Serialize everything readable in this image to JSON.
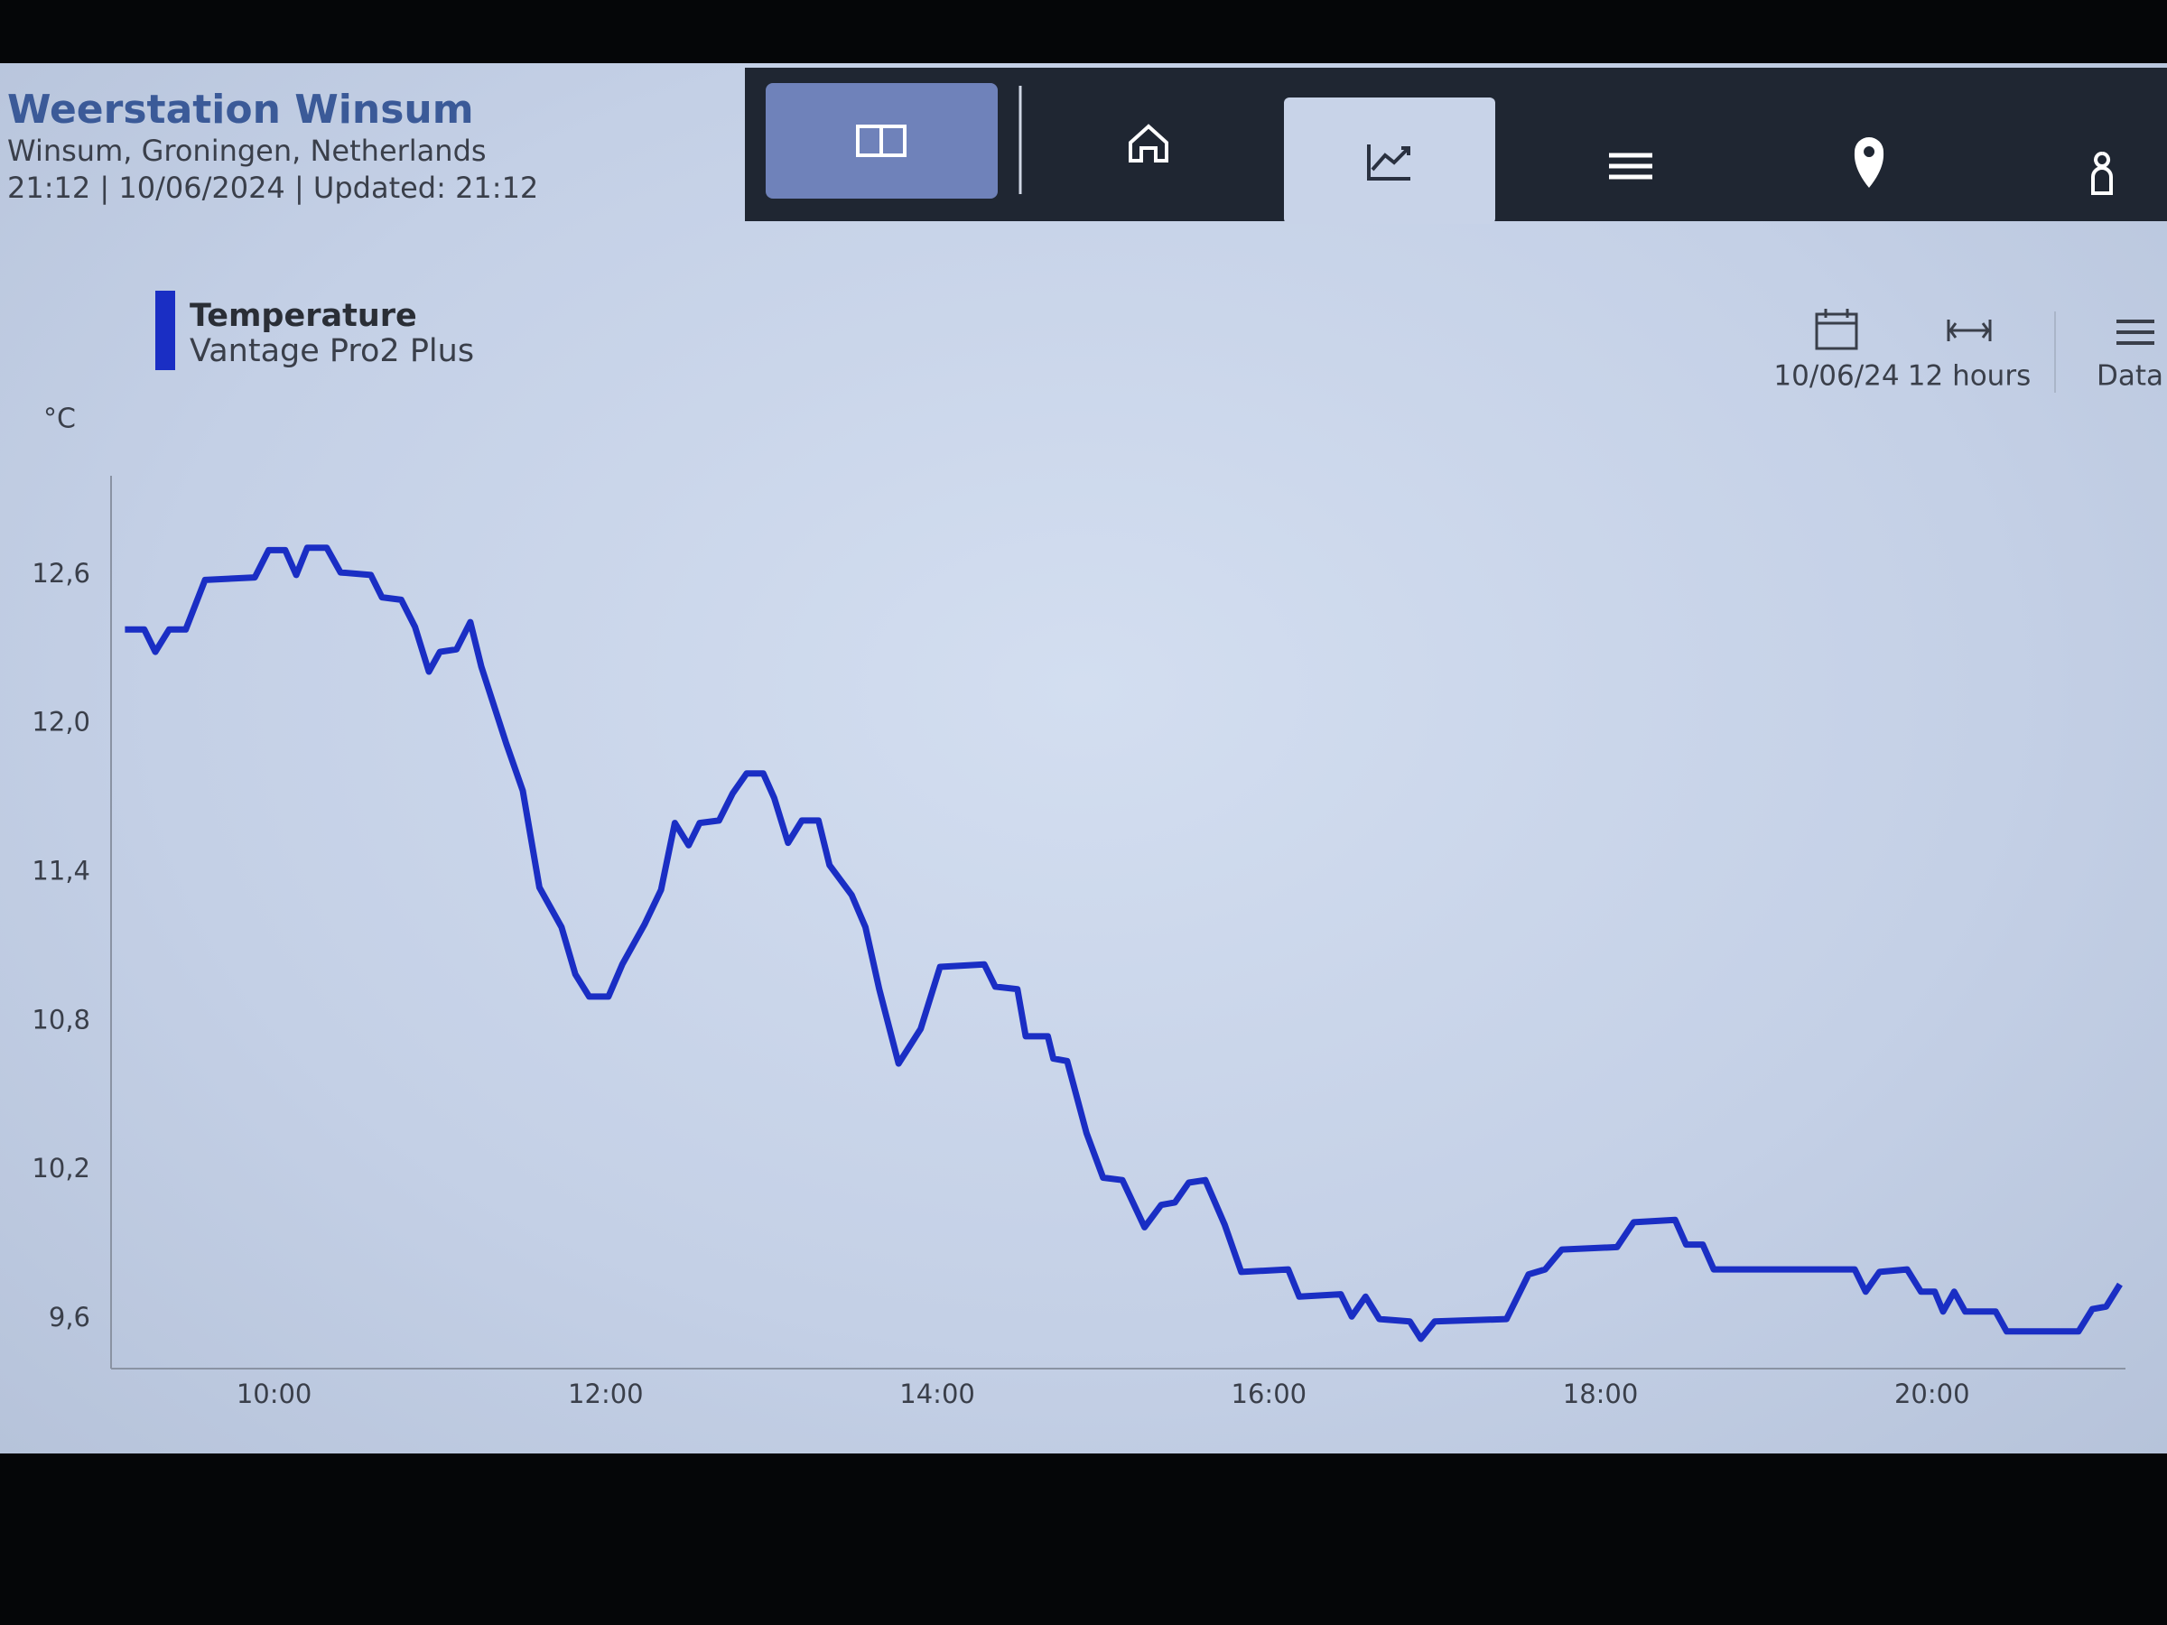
{
  "header": {
    "title": "Weerstation Winsum",
    "location": "Winsum, Groningen, Netherlands",
    "status": "21:12 | 10/06/2024 | Updated: 21:12"
  },
  "controls": {
    "date": "10/06/24",
    "range": "12 hours",
    "data": "Data"
  },
  "chart_data": {
    "type": "line",
    "y_label": "°C",
    "x": [
      "09:06",
      "09:13",
      "09:17",
      "09:22",
      "09:28",
      "09:35",
      "09:53",
      "09:58",
      "10:04",
      "10:08",
      "10:12",
      "10:19",
      "10:24",
      "10:35",
      "10:39",
      "10:46",
      "10:51",
      "10:56",
      "11:00",
      "11:06",
      "11:11",
      "11:15",
      "11:24",
      "11:30",
      "11:36",
      "11:44",
      "11:49",
      "11:54",
      "12:01",
      "12:06",
      "12:14",
      "12:20",
      "12:25",
      "12:30",
      "12:34",
      "12:41",
      "12:46",
      "12:51",
      "12:57",
      "13:01",
      "13:06",
      "13:11",
      "13:17",
      "13:21",
      "13:29",
      "13:34",
      "13:39",
      "13:46",
      "13:54",
      "14:01",
      "14:17",
      "14:21",
      "14:29",
      "14:32",
      "14:40",
      "14:42",
      "14:47",
      "14:54",
      "15:00",
      "15:07",
      "15:15",
      "15:21",
      "15:26",
      "15:31",
      "15:37",
      "15:44",
      "15:50",
      "16:07",
      "16:11",
      "16:26",
      "16:30",
      "16:35",
      "16:40",
      "16:51",
      "16:55",
      "17:00",
      "17:26",
      "17:34",
      "17:40",
      "17:46",
      "18:06",
      "18:12",
      "18:27",
      "18:31",
      "18:37",
      "18:41",
      "19:32",
      "19:36",
      "19:41",
      "19:51",
      "19:56",
      "20:01",
      "20:04",
      "20:08",
      "20:12",
      "20:23",
      "20:27",
      "20:53",
      "20:58",
      "21:03",
      "21:08"
    ],
    "series": [
      {
        "name": "Temperature",
        "source": "Vantage Pro2 Plus",
        "color": "#1a2ec4",
        "values": [
          12.38,
          12.38,
          12.29,
          12.38,
          12.38,
          12.58,
          12.59,
          12.7,
          12.7,
          12.6,
          12.71,
          12.71,
          12.61,
          12.6,
          12.51,
          12.5,
          12.39,
          12.21,
          12.29,
          12.3,
          12.41,
          12.23,
          11.92,
          11.73,
          11.34,
          11.18,
          10.99,
          10.9,
          10.9,
          11.03,
          11.19,
          11.33,
          11.6,
          11.51,
          11.6,
          11.61,
          11.72,
          11.8,
          11.8,
          11.7,
          11.52,
          11.61,
          11.61,
          11.43,
          11.31,
          11.18,
          10.93,
          10.63,
          10.77,
          11.02,
          11.03,
          10.94,
          10.93,
          10.74,
          10.74,
          10.65,
          10.64,
          10.35,
          10.17,
          10.16,
          9.97,
          10.06,
          10.07,
          10.15,
          10.16,
          9.98,
          9.79,
          9.8,
          9.69,
          9.7,
          9.61,
          9.69,
          9.6,
          9.59,
          9.52,
          9.59,
          9.6,
          9.78,
          9.8,
          9.88,
          9.89,
          9.99,
          10.0,
          9.9,
          9.9,
          9.8,
          9.8,
          9.71,
          9.79,
          9.8,
          9.71,
          9.71,
          9.63,
          9.71,
          9.63,
          9.63,
          9.55,
          9.55,
          9.64,
          9.65,
          9.74
        ]
      }
    ],
    "xlim": [
      "09:00",
      "21:10"
    ],
    "xticks": [
      "10:00",
      "12:00",
      "14:00",
      "16:00",
      "18:00",
      "20:00"
    ],
    "ylim": [
      9.4,
      13.0
    ],
    "yticks": [
      {
        "value": 9.6,
        "label": "9,6"
      },
      {
        "value": 10.2,
        "label": "10,2"
      },
      {
        "value": 10.8,
        "label": "10,8"
      },
      {
        "value": 11.4,
        "label": "11,4"
      },
      {
        "value": 12.0,
        "label": "12,0"
      },
      {
        "value": 12.6,
        "label": "12,6"
      }
    ],
    "grid": false
  }
}
